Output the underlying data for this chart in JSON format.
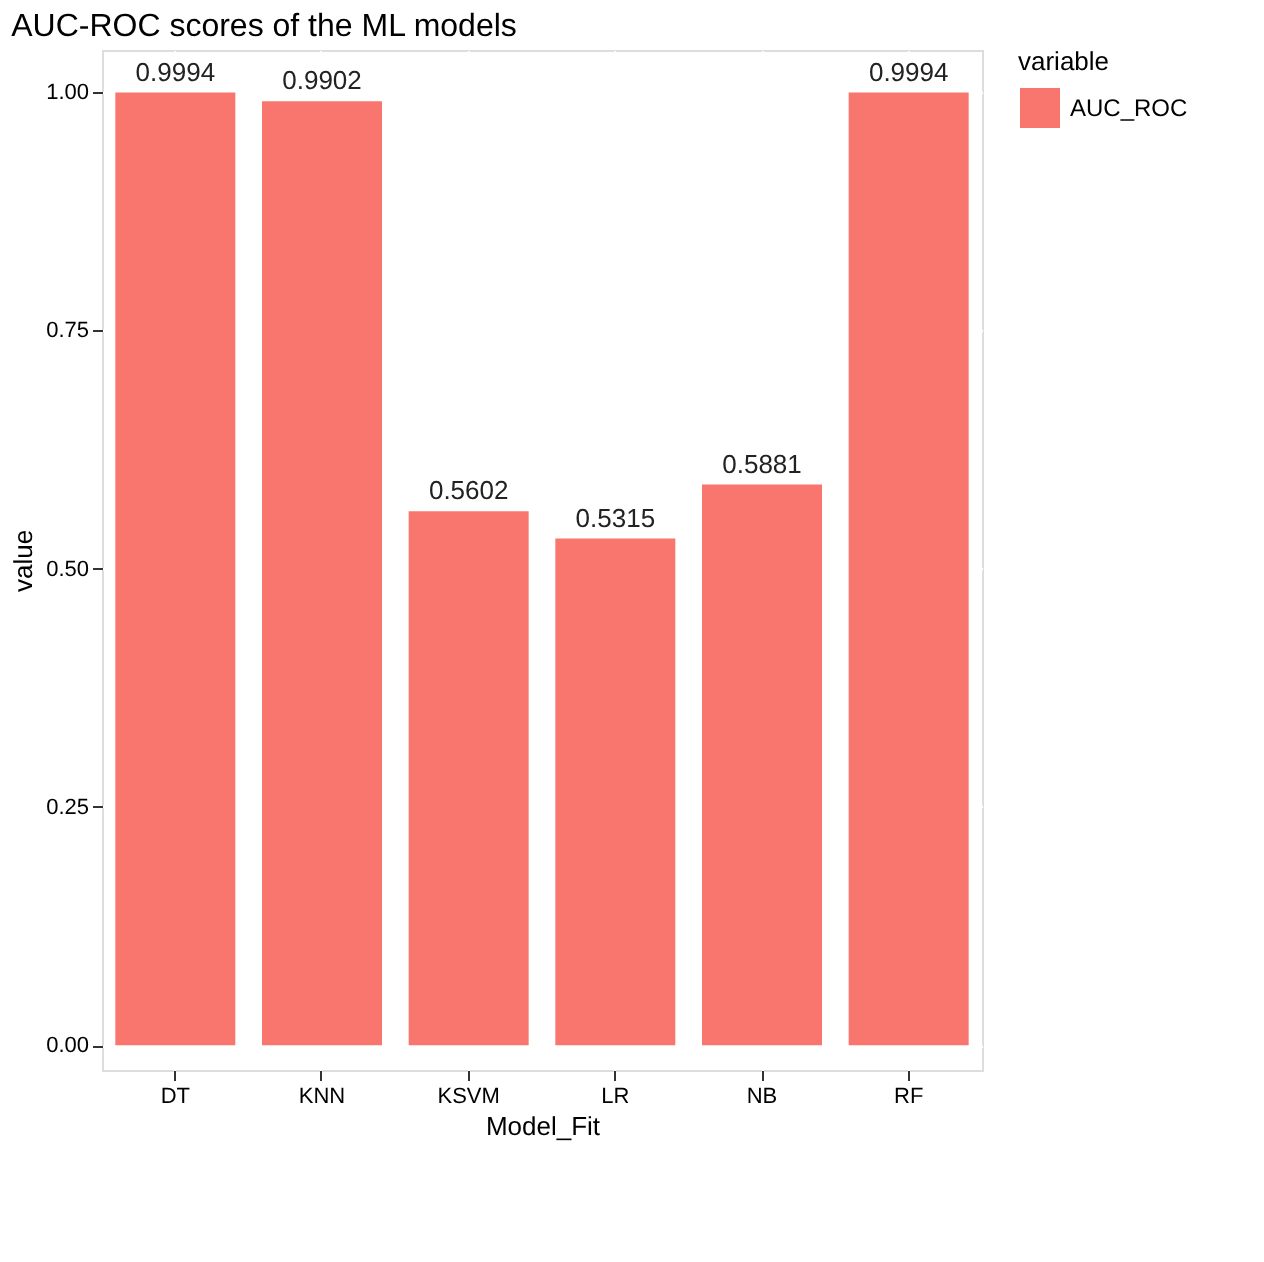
{
  "chart_data": {
    "type": "bar",
    "title": "AUC-ROC scores of the ML models",
    "xlabel": "Model_Fit",
    "ylabel": "value",
    "legend_title": "variable",
    "categories": [
      "DT",
      "KNN",
      "KSVM",
      "LR",
      "NB",
      "RF"
    ],
    "series": [
      {
        "name": "AUC_ROC",
        "color": "#f8766d",
        "values": [
          0.9994,
          0.9902,
          0.5602,
          0.5315,
          0.5881,
          0.9994
        ]
      }
    ],
    "ylim": [
      -0.026,
      1.044
    ],
    "yticks": [
      {
        "value": 0,
        "label": "0.00"
      },
      {
        "value": 0.25,
        "label": "0.25"
      },
      {
        "value": 0.5,
        "label": "0.50"
      },
      {
        "value": 0.75,
        "label": "0.75"
      },
      {
        "value": 1,
        "label": "1.00"
      }
    ],
    "data_labels": true,
    "grid": true,
    "legend": "right"
  }
}
